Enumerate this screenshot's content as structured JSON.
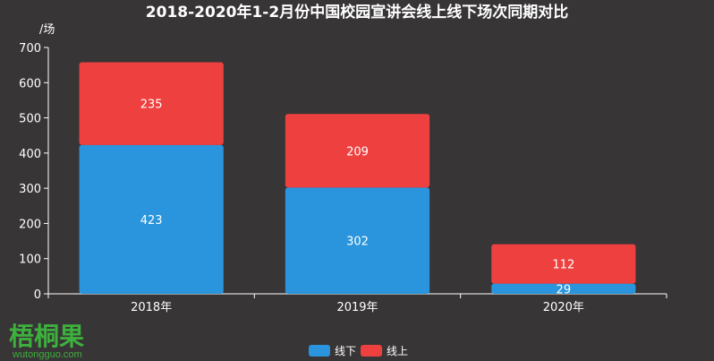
{
  "chart_data": {
    "type": "bar",
    "stacked": true,
    "title": "2018-2020年1-2月份中国校园宣讲会线上线下场次同期对比",
    "ylabel": "/场",
    "ylim": [
      0,
      700
    ],
    "yticks": [
      0,
      100,
      200,
      300,
      400,
      500,
      600,
      700
    ],
    "categories": [
      "2018年",
      "2019年",
      "2020年"
    ],
    "series": [
      {
        "name": "线下",
        "color": "#2a95dc",
        "values": [
          423,
          302,
          29
        ]
      },
      {
        "name": "线上",
        "color": "#ef4040",
        "values": [
          235,
          209,
          112
        ]
      }
    ],
    "legend_position": "bottom-center",
    "grid": false
  },
  "watermark": {
    "logo_text": "梧桐果",
    "url_text": "wutongguo.com",
    "color": "#3db03d"
  }
}
